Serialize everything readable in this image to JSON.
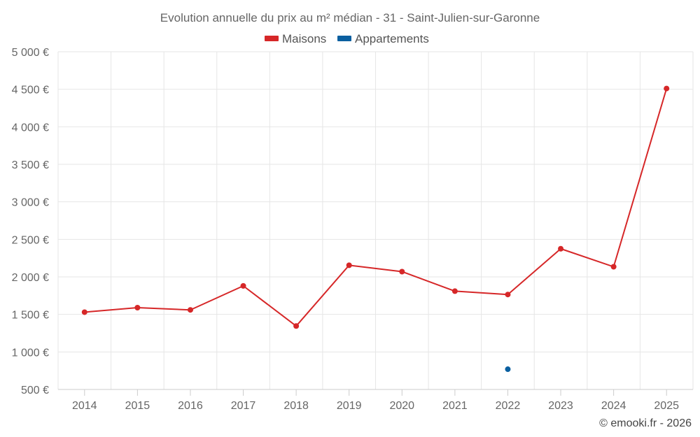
{
  "chart_data": {
    "type": "line",
    "title": "Evolution annuelle du prix au m² médian - 31 - Saint-Julien-sur-Garonne",
    "xlabel": "",
    "ylabel": "",
    "categories": [
      "2014",
      "2015",
      "2016",
      "2017",
      "2018",
      "2019",
      "2020",
      "2021",
      "2022",
      "2023",
      "2024",
      "2025"
    ],
    "ylim": [
      500,
      5000
    ],
    "yticks": [
      500,
      1000,
      1500,
      2000,
      2500,
      3000,
      3500,
      4000,
      4500,
      5000
    ],
    "ytick_labels": [
      "500 €",
      "1 000 €",
      "1 500 €",
      "2 000 €",
      "2 500 €",
      "3 000 €",
      "3 500 €",
      "4 000 €",
      "4 500 €",
      "5 000 €"
    ],
    "grid": true,
    "legend_position": "top-center",
    "series": [
      {
        "name": "Maisons",
        "color": "#d62728",
        "values": [
          1530,
          1590,
          1560,
          1880,
          1345,
          2155,
          2070,
          1810,
          1765,
          2375,
          2135,
          4510
        ]
      },
      {
        "name": "Appartements",
        "color": "#0a5fa0",
        "values": [
          null,
          null,
          null,
          null,
          null,
          null,
          null,
          null,
          770,
          null,
          null,
          null
        ]
      }
    ]
  },
  "credit": "© emooki.fr - 2026"
}
